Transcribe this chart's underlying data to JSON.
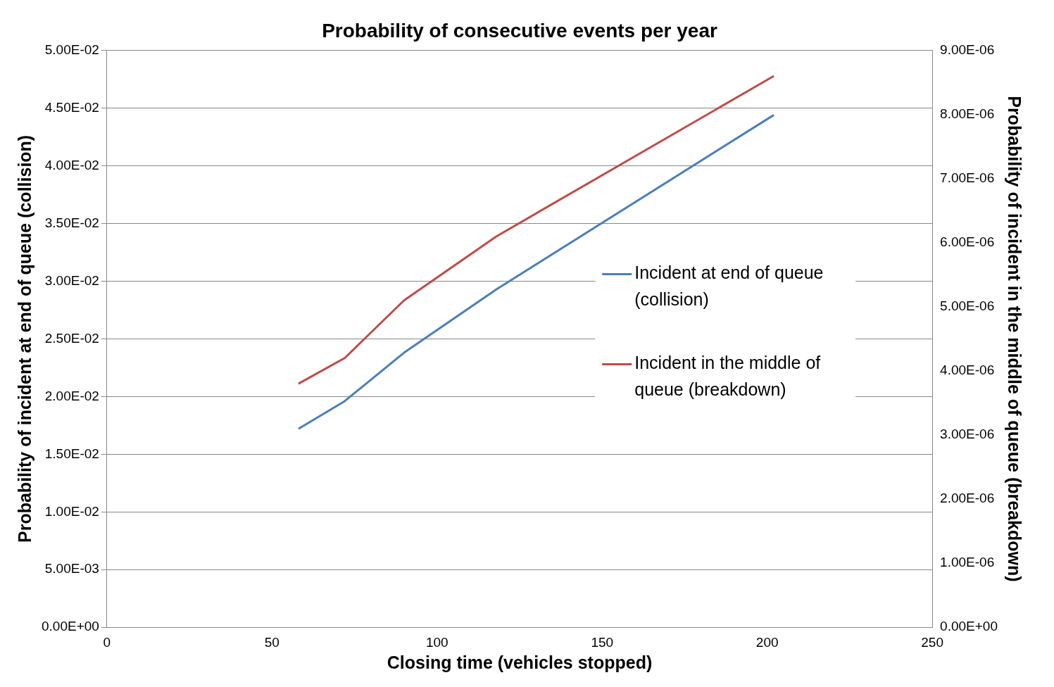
{
  "chart_data": {
    "type": "line",
    "title": "Probability of consecutive events per year",
    "xlabel": "Closing time (vehicles stopped)",
    "ylabel": "Probability of incident at end of queue (collision)",
    "y2label": "Probability of incident in the middle of queue (breakdown)",
    "x": [
      58,
      72,
      90,
      118,
      202
    ],
    "series": [
      {
        "name": "Incident at end of queue (collision)",
        "color": "#4a7ebb",
        "values": [
          0.0172,
          0.0196,
          0.0238,
          0.0293,
          0.0444
        ]
      },
      {
        "name": "Incident in the middle of queue (breakdown)",
        "color": "#be4b48",
        "axis": "y2",
        "values": [
          3.8e-06,
          4.2e-06,
          5.1e-06,
          6.1e-06,
          8.6e-06
        ]
      }
    ],
    "xlim": [
      0,
      250
    ],
    "xticks": [
      0,
      50,
      100,
      150,
      200,
      250
    ],
    "ylim": [
      0,
      0.05
    ],
    "yticks": [
      {
        "value": 0,
        "label": "0.00E+00"
      },
      {
        "value": 0.005,
        "label": "5.00E-03"
      },
      {
        "value": 0.01,
        "label": "1.00E-02"
      },
      {
        "value": 0.015,
        "label": "1.50E-02"
      },
      {
        "value": 0.02,
        "label": "2.00E-02"
      },
      {
        "value": 0.025,
        "label": "2.50E-02"
      },
      {
        "value": 0.03,
        "label": "3.00E-02"
      },
      {
        "value": 0.035,
        "label": "3.50E-02"
      },
      {
        "value": 0.04,
        "label": "4.00E-02"
      },
      {
        "value": 0.045,
        "label": "4.50E-02"
      },
      {
        "value": 0.05,
        "label": "5.00E-02"
      }
    ],
    "y2lim": [
      0,
      9e-06
    ],
    "y2ticks": [
      {
        "value": 0,
        "label": "0.00E+00"
      },
      {
        "value": 1e-06,
        "label": "1.00E-06"
      },
      {
        "value": 2e-06,
        "label": "2.00E-06"
      },
      {
        "value": 3e-06,
        "label": "3.00E-06"
      },
      {
        "value": 4e-06,
        "label": "4.00E-06"
      },
      {
        "value": 5e-06,
        "label": "5.00E-06"
      },
      {
        "value": 6e-06,
        "label": "6.00E-06"
      },
      {
        "value": 7e-06,
        "label": "7.00E-06"
      },
      {
        "value": 8e-06,
        "label": "8.00E-06"
      },
      {
        "value": 9e-06,
        "label": "9.00E-06"
      }
    ],
    "grid": "y",
    "legend": "right",
    "marker": "none",
    "line_style": "solid"
  }
}
